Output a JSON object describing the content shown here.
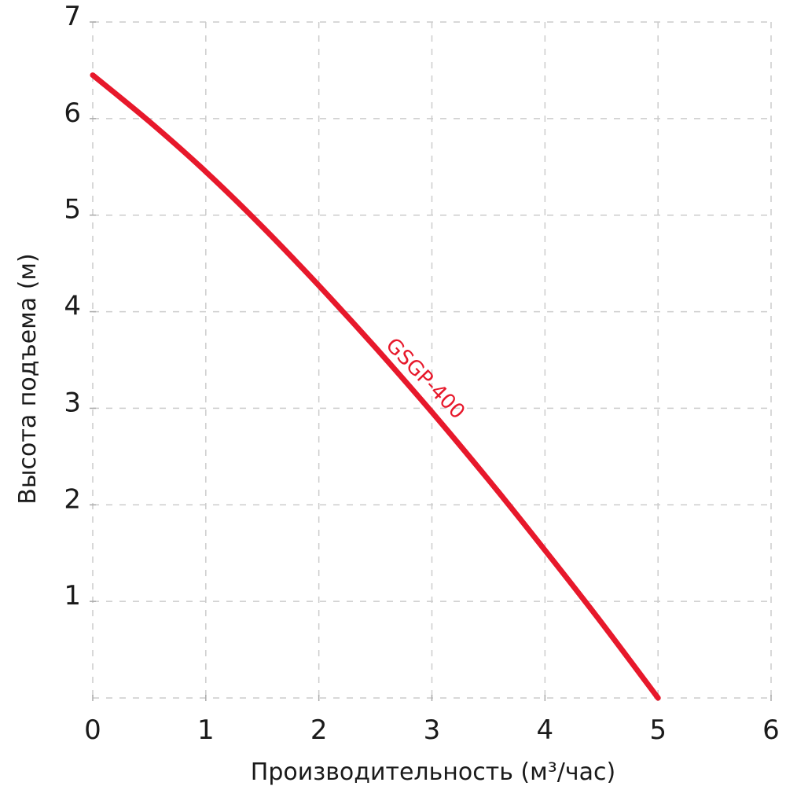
{
  "chart_data": {
    "type": "line",
    "title": "",
    "xlabel": "Производительность (м³/час)",
    "ylabel": "Высота подъема (м)",
    "xlim": [
      0,
      6
    ],
    "ylim": [
      0,
      7
    ],
    "xticks": [
      0,
      1,
      2,
      3,
      4,
      5,
      6
    ],
    "yticks": [
      1,
      2,
      3,
      4,
      5,
      6,
      7
    ],
    "grid": "dashed",
    "grid_color": "#cccccc",
    "tick_mark_color": "#aaaaaa",
    "text_color": "#1a1a1a",
    "background": "#ffffff",
    "legend": "none (curve labeled inline)",
    "series": [
      {
        "name": "GSGP-400",
        "color": "#e7182b",
        "x": [
          0,
          0.5,
          1,
          1.5,
          2,
          2.5,
          3,
          3.5,
          4,
          4.5,
          5
        ],
        "y": [
          6.45,
          5.97,
          5.45,
          4.88,
          4.27,
          3.63,
          2.96,
          2.26,
          1.53,
          0.78,
          0
        ],
        "label": {
          "text": "GSGP-400",
          "x": 2.9,
          "y": 3.26,
          "rotation_deg": 46
        }
      }
    ]
  }
}
